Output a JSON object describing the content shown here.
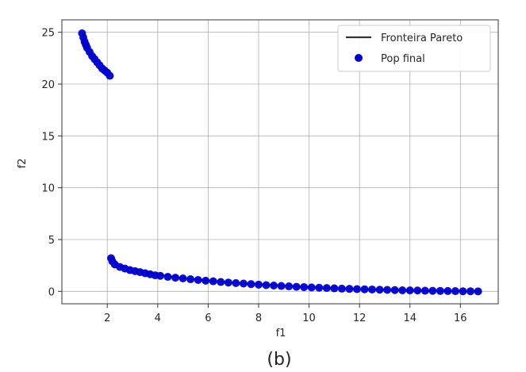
{
  "caption": "(b)",
  "chart_data": {
    "type": "scatter",
    "title": "",
    "xlabel": "f1",
    "ylabel": "f2",
    "xlim": [
      0.2,
      17.5
    ],
    "ylim": [
      -1.2,
      26.2
    ],
    "xticks": [
      2,
      4,
      6,
      8,
      10,
      12,
      14,
      16
    ],
    "yticks": [
      0,
      5,
      10,
      15,
      20,
      25
    ],
    "grid": true,
    "legend_position": "top-right",
    "colors": {
      "pareto": "#333333",
      "population": "#0000cc"
    },
    "series": [
      {
        "name": "Fronteira Pareto",
        "kind": "line",
        "x": [
          1.0,
          1.1,
          1.2,
          1.3,
          1.45,
          1.6,
          1.75,
          1.9,
          2.05,
          2.1,
          2.15,
          2.3,
          2.6,
          3.0,
          3.5,
          4.0,
          4.5,
          5.0,
          5.5,
          6.0,
          6.5,
          7.0,
          7.5,
          8.0,
          8.5,
          9.0,
          9.5,
          10.0,
          10.5,
          11.0,
          11.5,
          12.0,
          12.5,
          13.0,
          13.5,
          14.0,
          14.5,
          15.0,
          15.5,
          16.0,
          16.5,
          16.8
        ],
        "y": [
          24.9,
          24.2,
          23.6,
          23.1,
          22.6,
          22.1,
          21.7,
          21.3,
          21.0,
          20.8,
          3.1,
          2.7,
          2.4,
          2.2,
          1.9,
          1.65,
          1.45,
          1.3,
          1.15,
          1.05,
          0.95,
          0.85,
          0.77,
          0.7,
          0.62,
          0.55,
          0.48,
          0.42,
          0.37,
          0.32,
          0.27,
          0.23,
          0.19,
          0.15,
          0.12,
          0.09,
          0.07,
          0.05,
          0.03,
          0.02,
          0.01,
          0.0
        ]
      },
      {
        "name": "Pop final",
        "kind": "scatter",
        "x": [
          1.0,
          1.05,
          1.1,
          1.15,
          1.2,
          1.3,
          1.4,
          1.5,
          1.6,
          1.7,
          1.8,
          1.9,
          2.0,
          2.1,
          2.15,
          2.2,
          2.3,
          2.5,
          2.7,
          2.9,
          3.1,
          3.3,
          3.5,
          3.7,
          3.9,
          4.1,
          4.4,
          4.7,
          5.0,
          5.3,
          5.6,
          5.9,
          6.2,
          6.5,
          6.8,
          7.1,
          7.4,
          7.7,
          8.0,
          8.3,
          8.6,
          8.9,
          9.2,
          9.5,
          9.8,
          10.1,
          10.4,
          10.7,
          11.0,
          11.3,
          11.6,
          11.9,
          12.2,
          12.5,
          12.8,
          13.1,
          13.4,
          13.7,
          14.0,
          14.3,
          14.6,
          14.9,
          15.2,
          15.5,
          15.8,
          16.1,
          16.4,
          16.7
        ],
        "y": [
          24.9,
          24.5,
          24.1,
          23.8,
          23.5,
          23.1,
          22.7,
          22.4,
          22.1,
          21.8,
          21.5,
          21.3,
          21.1,
          20.8,
          3.2,
          2.9,
          2.6,
          2.35,
          2.2,
          2.05,
          1.95,
          1.85,
          1.75,
          1.65,
          1.55,
          1.5,
          1.4,
          1.32,
          1.25,
          1.17,
          1.1,
          1.03,
          0.97,
          0.9,
          0.85,
          0.8,
          0.75,
          0.7,
          0.65,
          0.6,
          0.56,
          0.52,
          0.48,
          0.44,
          0.41,
          0.38,
          0.35,
          0.32,
          0.29,
          0.26,
          0.24,
          0.22,
          0.2,
          0.18,
          0.16,
          0.14,
          0.12,
          0.1,
          0.09,
          0.08,
          0.06,
          0.05,
          0.04,
          0.03,
          0.02,
          0.01,
          0.01,
          0.0
        ]
      }
    ]
  }
}
